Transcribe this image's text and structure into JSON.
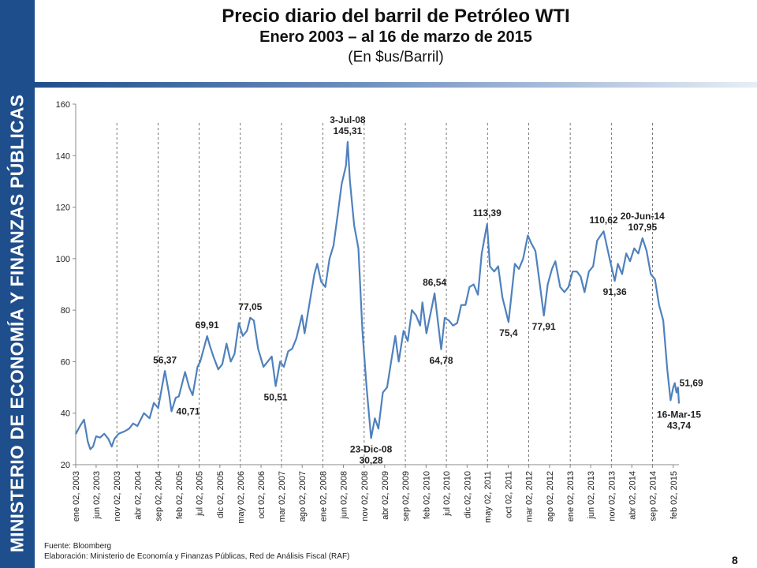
{
  "sidebar": {
    "text": "MINISTERIO DE ECONOMÍA Y FINANZAS PÚBLICAS"
  },
  "header": {
    "title": "Precio diario del barril de Petróleo WTI",
    "subtitle": "Enero 2003 – al 16 de marzo de 2015",
    "units": "(En $us/Barril)"
  },
  "footer": {
    "source": "Fuente: Bloomberg",
    "elaboration": "Elaboración: Ministerio de Economía y Finanzas Públicas, Red de Análisis Fiscal (RAF)"
  },
  "page_number": "8",
  "colors": {
    "sidebar": "#1f4e8c",
    "line": "#4f81bd",
    "grid": "#555555"
  },
  "chart_data": {
    "type": "line",
    "ylim": [
      20,
      160
    ],
    "yticks": [
      20,
      40,
      60,
      80,
      100,
      120,
      140,
      160
    ],
    "xlim": [
      "2003-01-02",
      "2015-03-16"
    ],
    "xticks": [
      {
        "date": "2003-01-02",
        "label": "ene 02, 2003"
      },
      {
        "date": "2003-06-02",
        "label": "jun 02, 2003"
      },
      {
        "date": "2003-11-02",
        "label": "nov 02, 2003"
      },
      {
        "date": "2004-04-02",
        "label": "abr 02, 2004"
      },
      {
        "date": "2004-09-02",
        "label": "sep 02, 2004"
      },
      {
        "date": "2005-02-02",
        "label": "feb 02, 2005"
      },
      {
        "date": "2005-07-02",
        "label": "jul 02, 2005"
      },
      {
        "date": "2005-12-02",
        "label": "dic 02, 2005"
      },
      {
        "date": "2006-05-02",
        "label": "may 02, 2006"
      },
      {
        "date": "2006-10-02",
        "label": "oct 02, 2006"
      },
      {
        "date": "2007-03-02",
        "label": "mar 02, 2007"
      },
      {
        "date": "2007-08-02",
        "label": "ago 02, 2007"
      },
      {
        "date": "2008-01-02",
        "label": "ene 02, 2008"
      },
      {
        "date": "2008-06-02",
        "label": "jun 02, 2008"
      },
      {
        "date": "2008-11-02",
        "label": "nov 02, 2008"
      },
      {
        "date": "2009-04-02",
        "label": "abr 02, 2009"
      },
      {
        "date": "2009-09-02",
        "label": "sep 02, 2009"
      },
      {
        "date": "2010-02-02",
        "label": "feb 02, 2010"
      },
      {
        "date": "2010-07-02",
        "label": "jul 02, 2010"
      },
      {
        "date": "2010-12-02",
        "label": "dic 02, 2010"
      },
      {
        "date": "2011-05-02",
        "label": "may 02, 2011"
      },
      {
        "date": "2011-10-02",
        "label": "oct 02, 2011"
      },
      {
        "date": "2012-03-02",
        "label": "mar 02, 2012"
      },
      {
        "date": "2012-08-02",
        "label": "ago 02, 2012"
      },
      {
        "date": "2013-01-02",
        "label": "ene 02, 2013"
      },
      {
        "date": "2013-06-02",
        "label": "jun 02, 2013"
      },
      {
        "date": "2013-11-02",
        "label": "nov 02, 2013"
      },
      {
        "date": "2014-04-02",
        "label": "abr 02, 2014"
      },
      {
        "date": "2014-09-02",
        "label": "sep 02, 2014"
      },
      {
        "date": "2015-02-02",
        "label": "feb 02, 2015"
      }
    ],
    "vlines": [
      "2003-11-02",
      "2004-09-02",
      "2005-07-02",
      "2006-05-02",
      "2007-03-02",
      "2008-01-02",
      "2008-11-02",
      "2009-09-02",
      "2010-07-02",
      "2011-05-02",
      "2012-03-02",
      "2013-01-02",
      "2013-11-02",
      "2014-09-02"
    ],
    "grid": false,
    "series": [
      {
        "color": "#4f81bd",
        "points": [
          [
            "2003-01-02",
            31.9
          ],
          [
            "2003-02-03",
            35
          ],
          [
            "2003-03-05",
            37.5
          ],
          [
            "2003-04-01",
            29
          ],
          [
            "2003-04-20",
            26
          ],
          [
            "2003-05-10",
            27
          ],
          [
            "2003-06-02",
            31
          ],
          [
            "2003-07-01",
            30.5
          ],
          [
            "2003-08-01",
            32
          ],
          [
            "2003-09-01",
            30
          ],
          [
            "2003-09-25",
            27
          ],
          [
            "2003-10-15",
            30
          ],
          [
            "2003-11-15",
            32
          ],
          [
            "2003-12-31",
            33
          ],
          [
            "2004-02-01",
            34
          ],
          [
            "2004-03-01",
            36
          ],
          [
            "2004-04-02",
            35
          ],
          [
            "2004-05-20",
            40
          ],
          [
            "2004-07-01",
            38
          ],
          [
            "2004-08-01",
            44
          ],
          [
            "2004-09-02",
            42
          ],
          [
            "2004-10-22",
            56.4
          ],
          [
            "2004-11-20",
            48
          ],
          [
            "2004-12-10",
            40.7
          ],
          [
            "2005-01-10",
            46
          ],
          [
            "2005-02-02",
            46.5
          ],
          [
            "2005-03-20",
            56
          ],
          [
            "2005-04-20",
            50
          ],
          [
            "2005-05-15",
            47
          ],
          [
            "2005-06-20",
            58
          ],
          [
            "2005-07-10",
            60
          ],
          [
            "2005-08-30",
            69.9
          ],
          [
            "2005-09-20",
            66
          ],
          [
            "2005-10-15",
            62
          ],
          [
            "2005-11-20",
            57
          ],
          [
            "2005-12-20",
            59
          ],
          [
            "2006-01-20",
            67
          ],
          [
            "2006-02-20",
            60
          ],
          [
            "2006-03-20",
            63
          ],
          [
            "2006-04-21",
            75
          ],
          [
            "2006-05-20",
            70
          ],
          [
            "2006-06-20",
            72
          ],
          [
            "2006-07-14",
            77.05
          ],
          [
            "2006-08-10",
            76
          ],
          [
            "2006-09-10",
            65
          ],
          [
            "2006-10-20",
            58
          ],
          [
            "2006-11-20",
            60
          ],
          [
            "2006-12-20",
            62
          ],
          [
            "2007-01-18",
            50.5
          ],
          [
            "2007-02-20",
            60
          ],
          [
            "2007-03-20",
            58
          ],
          [
            "2007-04-20",
            64
          ],
          [
            "2007-05-20",
            65
          ],
          [
            "2007-06-20",
            69
          ],
          [
            "2007-07-31",
            78
          ],
          [
            "2007-08-20",
            71
          ],
          [
            "2007-09-20",
            81
          ],
          [
            "2007-10-31",
            94
          ],
          [
            "2007-11-21",
            98
          ],
          [
            "2007-12-20",
            91
          ],
          [
            "2008-01-20",
            89
          ],
          [
            "2008-02-20",
            100
          ],
          [
            "2008-03-20",
            105
          ],
          [
            "2008-04-20",
            117
          ],
          [
            "2008-05-20",
            129
          ],
          [
            "2008-06-20",
            136
          ],
          [
            "2008-07-03",
            145.31
          ],
          [
            "2008-07-20",
            130
          ],
          [
            "2008-08-20",
            113
          ],
          [
            "2008-09-20",
            104
          ],
          [
            "2008-10-20",
            72
          ],
          [
            "2008-11-20",
            50
          ],
          [
            "2008-12-23",
            30.28
          ],
          [
            "2009-01-20",
            38
          ],
          [
            "2009-02-15",
            34
          ],
          [
            "2009-03-20",
            48
          ],
          [
            "2009-04-20",
            50
          ],
          [
            "2009-05-20",
            60
          ],
          [
            "2009-06-20",
            70
          ],
          [
            "2009-07-15",
            60
          ],
          [
            "2009-08-20",
            72
          ],
          [
            "2009-09-20",
            68
          ],
          [
            "2009-10-20",
            80
          ],
          [
            "2009-11-20",
            78
          ],
          [
            "2009-12-20",
            74
          ],
          [
            "2010-01-06",
            83
          ],
          [
            "2010-02-05",
            71
          ],
          [
            "2010-03-20",
            82
          ],
          [
            "2010-04-06",
            86.54
          ],
          [
            "2010-05-25",
            64.78
          ],
          [
            "2010-06-20",
            77
          ],
          [
            "2010-07-20",
            76
          ],
          [
            "2010-08-20",
            74
          ],
          [
            "2010-09-20",
            75
          ],
          [
            "2010-10-20",
            82
          ],
          [
            "2010-11-20",
            82
          ],
          [
            "2010-12-20",
            89
          ],
          [
            "2011-01-20",
            90
          ],
          [
            "2011-02-20",
            86
          ],
          [
            "2011-03-20",
            102
          ],
          [
            "2011-04-29",
            113.39
          ],
          [
            "2011-05-20",
            97
          ],
          [
            "2011-06-20",
            95
          ],
          [
            "2011-07-20",
            97
          ],
          [
            "2011-08-20",
            85
          ],
          [
            "2011-10-04",
            75.4
          ],
          [
            "2011-11-20",
            98
          ],
          [
            "2011-12-20",
            96
          ],
          [
            "2012-01-20",
            100
          ],
          [
            "2012-02-24",
            109
          ],
          [
            "2012-03-20",
            106
          ],
          [
            "2012-04-20",
            103
          ],
          [
            "2012-05-20",
            91
          ],
          [
            "2012-06-21",
            77.91
          ],
          [
            "2012-07-20",
            90
          ],
          [
            "2012-08-20",
            96
          ],
          [
            "2012-09-14",
            99
          ],
          [
            "2012-10-20",
            89
          ],
          [
            "2012-11-20",
            87
          ],
          [
            "2012-12-20",
            89
          ],
          [
            "2013-01-20",
            95
          ],
          [
            "2013-02-20",
            95
          ],
          [
            "2013-03-20",
            93
          ],
          [
            "2013-04-18",
            87
          ],
          [
            "2013-05-20",
            95
          ],
          [
            "2013-06-20",
            97
          ],
          [
            "2013-07-20",
            107
          ],
          [
            "2013-09-06",
            110.62
          ],
          [
            "2013-10-20",
            100
          ],
          [
            "2013-11-27",
            91.36
          ],
          [
            "2013-12-20",
            98
          ],
          [
            "2014-01-20",
            94
          ],
          [
            "2014-02-20",
            102
          ],
          [
            "2014-03-20",
            99
          ],
          [
            "2014-04-20",
            104
          ],
          [
            "2014-05-20",
            102
          ],
          [
            "2014-06-20",
            107.95
          ],
          [
            "2014-07-20",
            103
          ],
          [
            "2014-08-20",
            94
          ],
          [
            "2014-09-20",
            92
          ],
          [
            "2014-10-20",
            82
          ],
          [
            "2014-11-20",
            76
          ],
          [
            "2014-12-20",
            57
          ],
          [
            "2015-01-13",
            45
          ],
          [
            "2015-02-02",
            50
          ],
          [
            "2015-02-13",
            51.69
          ],
          [
            "2015-02-26",
            48
          ],
          [
            "2015-03-09",
            50
          ],
          [
            "2015-03-16",
            43.74
          ]
        ]
      }
    ],
    "annotations": [
      {
        "lines": [
          "3-Jul-08",
          "145,31"
        ],
        "date": "2008-07-03",
        "value": 145.31,
        "pos": "above"
      },
      {
        "lines": [
          "23-Dic-08",
          "30,28"
        ],
        "date": "2008-12-23",
        "value": 30.28,
        "pos": "below"
      },
      {
        "lines": [
          "56,37"
        ],
        "date": "2004-10-22",
        "value": 56.37,
        "pos": "above"
      },
      {
        "lines": [
          "40,71"
        ],
        "date": "2004-12-10",
        "value": 40.71,
        "pos": "right"
      },
      {
        "lines": [
          "69,91"
        ],
        "date": "2005-08-30",
        "value": 69.91,
        "pos": "above"
      },
      {
        "lines": [
          "77,05"
        ],
        "date": "2006-07-14",
        "value": 77.05,
        "pos": "above"
      },
      {
        "lines": [
          "50,51"
        ],
        "date": "2007-01-18",
        "value": 50.51,
        "pos": "below"
      },
      {
        "lines": [
          "86,54"
        ],
        "date": "2010-04-06",
        "value": 86.54,
        "pos": "above"
      },
      {
        "lines": [
          "64,78"
        ],
        "date": "2010-05-25",
        "value": 64.78,
        "pos": "below"
      },
      {
        "lines": [
          "113,39"
        ],
        "date": "2011-04-29",
        "value": 113.39,
        "pos": "above"
      },
      {
        "lines": [
          "75,4"
        ],
        "date": "2011-10-04",
        "value": 75.4,
        "pos": "below"
      },
      {
        "lines": [
          "77,91"
        ],
        "date": "2012-06-21",
        "value": 77.91,
        "pos": "below"
      },
      {
        "lines": [
          "110,62"
        ],
        "date": "2013-09-06",
        "value": 110.62,
        "pos": "above"
      },
      {
        "lines": [
          "91,36"
        ],
        "date": "2013-11-27",
        "value": 91.36,
        "pos": "below"
      },
      {
        "lines": [
          "20-Jun-14",
          "107,95"
        ],
        "date": "2014-06-20",
        "value": 107.95,
        "pos": "above"
      },
      {
        "lines": [
          "51,69"
        ],
        "date": "2015-02-13",
        "value": 51.69,
        "pos": "right"
      },
      {
        "lines": [
          "16-Mar-15",
          "43,74"
        ],
        "date": "2015-03-16",
        "value": 43.74,
        "pos": "below"
      }
    ]
  }
}
